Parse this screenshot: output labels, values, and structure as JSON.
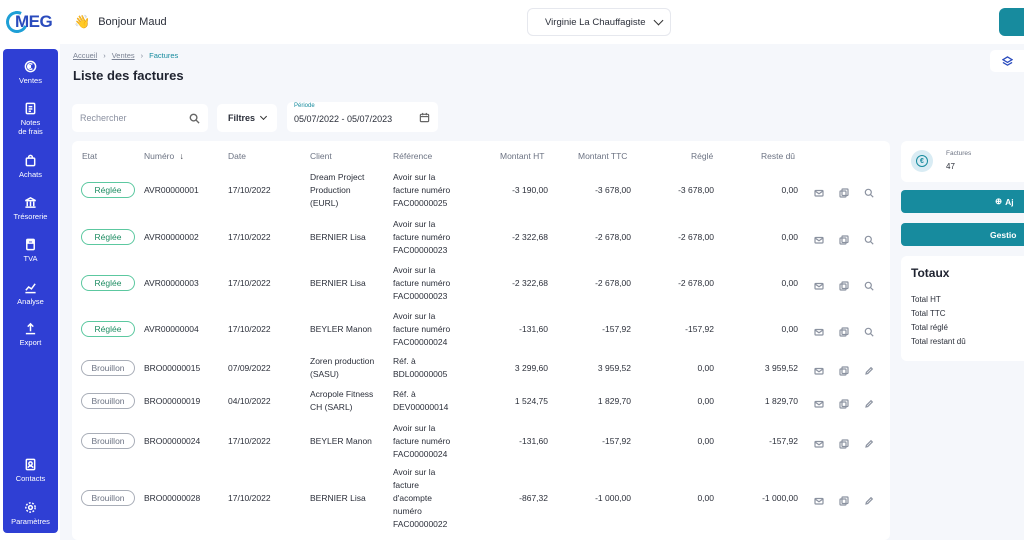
{
  "header": {
    "logo_text": "MEG",
    "greeting": "Bonjour Maud",
    "company": "Virginie La Chauffagiste"
  },
  "sidebar": {
    "items": [
      {
        "label": "Ventes",
        "icon": "euro-icon"
      },
      {
        "label": "Notes de frais",
        "icon": "receipt-icon"
      },
      {
        "label": "Achats",
        "icon": "shopping-bag-icon"
      },
      {
        "label": "Trésorerie",
        "icon": "bank-icon"
      },
      {
        "label": "TVA",
        "icon": "calculator-icon"
      },
      {
        "label": "Analyse",
        "icon": "chart-line-icon"
      },
      {
        "label": "Export",
        "icon": "upload-icon"
      },
      {
        "label": "Contacts",
        "icon": "contacts-icon"
      },
      {
        "label": "Paramètres",
        "icon": "gear-icon"
      }
    ]
  },
  "breadcrumb": {
    "home": "Accueil",
    "sales": "Ventes",
    "current": "Factures",
    "sep": "›"
  },
  "page_title": "Liste des factures",
  "toolbar": {
    "search_placeholder": "Rechercher",
    "filters_label": "Filtres",
    "period_label": "Période",
    "period_value": "05/07/2022 - 05/07/2023"
  },
  "table": {
    "headers": {
      "etat": "Etat",
      "numero": "Numéro",
      "sort_icon": "↓",
      "date": "Date",
      "client": "Client",
      "reference": "Référence",
      "ht": "Montant HT",
      "ttc": "Montant TTC",
      "regle": "Réglé",
      "reste": "Reste dû"
    },
    "rows": [
      {
        "status": "Réglée",
        "type": "regle",
        "numero": "AVR00000001",
        "date": "17/10/2022",
        "client": [
          "Dream Project",
          "Production",
          "(EURL)"
        ],
        "reference": [
          "Avoir sur la",
          "facture numéro",
          "FAC00000025"
        ],
        "ht": "-3 190,00",
        "ttc": "-3 678,00",
        "regle": "-3 678,00",
        "reste": "0,00",
        "third_action": "search"
      },
      {
        "status": "Réglée",
        "type": "regle",
        "numero": "AVR00000002",
        "date": "17/10/2022",
        "client": [
          "BERNIER Lisa"
        ],
        "reference": [
          "Avoir sur la",
          "facture numéro",
          "FAC00000023"
        ],
        "ht": "-2 322,68",
        "ttc": "-2 678,00",
        "regle": "-2 678,00",
        "reste": "0,00",
        "third_action": "search"
      },
      {
        "status": "Réglée",
        "type": "regle",
        "numero": "AVR00000003",
        "date": "17/10/2022",
        "client": [
          "BERNIER Lisa"
        ],
        "reference": [
          "Avoir sur la",
          "facture numéro",
          "FAC00000023"
        ],
        "ht": "-2 322,68",
        "ttc": "-2 678,00",
        "regle": "-2 678,00",
        "reste": "0,00",
        "third_action": "search"
      },
      {
        "status": "Réglée",
        "type": "regle",
        "numero": "AVR00000004",
        "date": "17/10/2022",
        "client": [
          "BEYLER Manon"
        ],
        "reference": [
          "Avoir sur la",
          "facture numéro",
          "FAC00000024"
        ],
        "ht": "-131,60",
        "ttc": "-157,92",
        "regle": "-157,92",
        "reste": "0,00",
        "third_action": "search"
      },
      {
        "status": "Brouillon",
        "type": "brouillon",
        "numero": "BRO00000015",
        "date": "07/09/2022",
        "client": [
          "Zoren production",
          "(SASU)"
        ],
        "reference": [
          "Réf. à",
          "BDL00000005"
        ],
        "ht": "3 299,60",
        "ttc": "3 959,52",
        "regle": "0,00",
        "reste": "3 959,52",
        "third_action": "edit"
      },
      {
        "status": "Brouillon",
        "type": "brouillon",
        "numero": "BRO00000019",
        "date": "04/10/2022",
        "client": [
          "Acropole Fitness",
          "CH (SARL)"
        ],
        "reference": [
          "Réf. à",
          "DEV00000014"
        ],
        "ht": "1 524,75",
        "ttc": "1 829,70",
        "regle": "0,00",
        "reste": "1 829,70",
        "third_action": "edit"
      },
      {
        "status": "Brouillon",
        "type": "brouillon",
        "numero": "BRO00000024",
        "date": "17/10/2022",
        "client": [
          "BEYLER Manon"
        ],
        "reference": [
          "Avoir sur la",
          "facture numéro",
          "FAC00000024"
        ],
        "ht": "-131,60",
        "ttc": "-157,92",
        "regle": "0,00",
        "reste": "-157,92",
        "third_action": "edit"
      },
      {
        "status": "Brouillon",
        "type": "brouillon",
        "numero": "BRO00000028",
        "date": "17/10/2022",
        "client": [
          "BERNIER Lisa"
        ],
        "reference": [
          "Avoir sur la",
          "facture",
          "d'acompte",
          "numéro",
          "FAC00000022"
        ],
        "ht": "-867,32",
        "ttc": "-1 000,00",
        "regle": "0,00",
        "reste": "-1 000,00",
        "third_action": "edit"
      }
    ]
  },
  "right_panel": {
    "factures_label": "Factures",
    "factures_count": "47",
    "add_button": "Aj",
    "gestion_button": "Gestio",
    "totaux_title": "Totaux",
    "totaux_lines": [
      "Total HT",
      "Total TTC",
      "Total réglé",
      "Total restant dû"
    ]
  },
  "colors": {
    "sidebar": "#2f3fd4",
    "accent": "#178b9e",
    "paid_border": "#5cc8a0",
    "page_bg": "#f5f7fb"
  }
}
